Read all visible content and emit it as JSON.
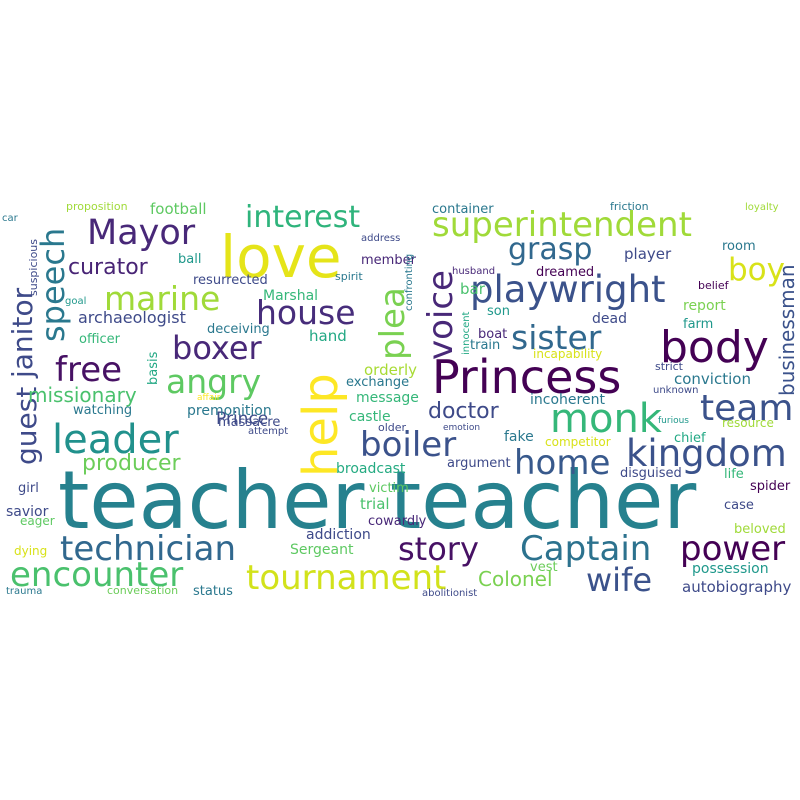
{
  "words": [
    {
      "text": "teacher teacher",
      "color": "#26818e"
    },
    {
      "text": "love",
      "color": "#e5e419"
    },
    {
      "text": "help",
      "color": "#fde725"
    },
    {
      "text": "Princess",
      "color": "#440154"
    },
    {
      "text": "body",
      "color": "#440154"
    },
    {
      "text": "playwright",
      "color": "#3b528b"
    },
    {
      "text": "superintendent",
      "color": "#a0da39"
    },
    {
      "text": "leader",
      "color": "#21918c"
    },
    {
      "text": "kingdom",
      "color": "#3b528b"
    },
    {
      "text": "technician",
      "color": "#31688e"
    },
    {
      "text": "encounter",
      "color": "#4ac16d"
    },
    {
      "text": "tournament",
      "color": "#d2e21b"
    },
    {
      "text": "Captain",
      "color": "#2c728e"
    },
    {
      "text": "power",
      "color": "#440154"
    },
    {
      "text": "story",
      "color": "#471164"
    },
    {
      "text": "wife",
      "color": "#3b528b"
    },
    {
      "text": "monk",
      "color": "#35b779"
    },
    {
      "text": "home",
      "color": "#38598c"
    },
    {
      "text": "boiler",
      "color": "#3b528b"
    },
    {
      "text": "sister",
      "color": "#31688e"
    },
    {
      "text": "team",
      "color": "#3b528b"
    },
    {
      "text": "Mayor",
      "color": "#482878"
    },
    {
      "text": "interest",
      "color": "#2fb47c"
    },
    {
      "text": "marine",
      "color": "#a0da39"
    },
    {
      "text": "house",
      "color": "#472d7b"
    },
    {
      "text": "angry",
      "color": "#5ec962"
    },
    {
      "text": "free",
      "color": "#471164"
    },
    {
      "text": "boxer",
      "color": "#482878"
    },
    {
      "text": "voice",
      "color": "#482878"
    },
    {
      "text": "plea",
      "color": "#7ad151"
    },
    {
      "text": "speech",
      "color": "#2a788e"
    },
    {
      "text": "guest",
      "color": "#3e4a89"
    },
    {
      "text": "janitor",
      "color": "#3e4a89"
    },
    {
      "text": "grasp",
      "color": "#31688e"
    },
    {
      "text": "boy",
      "color": "#d8e219"
    },
    {
      "text": "businessman",
      "color": "#3b528b"
    },
    {
      "text": "curator",
      "color": "#482475"
    },
    {
      "text": "doctor",
      "color": "#3e4a89"
    },
    {
      "text": "producer",
      "color": "#6ccd5a"
    },
    {
      "text": "missionary",
      "color": "#4ac16d"
    },
    {
      "text": "archaeologist",
      "color": "#3e4a89"
    },
    {
      "text": "Colonel",
      "color": "#7ad151"
    },
    {
      "text": "Prince",
      "color": "#3e4a89"
    },
    {
      "text": "football",
      "color": "#5ec962"
    },
    {
      "text": "container",
      "color": "#2a788e"
    },
    {
      "text": "player",
      "color": "#3e4a89"
    },
    {
      "text": "conviction",
      "color": "#2a788e"
    },
    {
      "text": "autobiography",
      "color": "#3e4a89"
    },
    {
      "text": "Marshal",
      "color": "#35b779"
    },
    {
      "text": "Sergeant",
      "color": "#5ec962"
    },
    {
      "text": "broadcast",
      "color": "#25ab82"
    },
    {
      "text": "premonition",
      "color": "#2a788e"
    },
    {
      "text": "possession",
      "color": "#1f988b"
    },
    {
      "text": "hand",
      "color": "#22a884"
    },
    {
      "text": "incoherent",
      "color": "#2a788e"
    },
    {
      "text": "orderly",
      "color": "#a8db34"
    },
    {
      "text": "message",
      "color": "#35b779"
    },
    {
      "text": "trial",
      "color": "#4ac16d"
    },
    {
      "text": "addiction",
      "color": "#3e4a89"
    },
    {
      "text": "cowardly",
      "color": "#482878"
    },
    {
      "text": "massacre",
      "color": "#3e4a89"
    },
    {
      "text": "exchange",
      "color": "#2a788e"
    },
    {
      "text": "castle",
      "color": "#35b779"
    },
    {
      "text": "victim",
      "color": "#5ec962"
    },
    {
      "text": "member",
      "color": "#482878"
    },
    {
      "text": "bar",
      "color": "#4ac16d"
    },
    {
      "text": "son",
      "color": "#1f988b"
    },
    {
      "text": "dreamed",
      "color": "#440154"
    },
    {
      "text": "dead",
      "color": "#3e4a89"
    },
    {
      "text": "train",
      "color": "#2a788e"
    },
    {
      "text": "boat",
      "color": "#482878"
    },
    {
      "text": "report",
      "color": "#7ad151"
    },
    {
      "text": "farm",
      "color": "#1f988b"
    },
    {
      "text": "room",
      "color": "#2a788e"
    },
    {
      "text": "chief",
      "color": "#22a884"
    },
    {
      "text": "fake",
      "color": "#2a788e"
    },
    {
      "text": "argument",
      "color": "#3e4a89"
    },
    {
      "text": "disguised",
      "color": "#3e4a89"
    },
    {
      "text": "case",
      "color": "#3e4a89"
    },
    {
      "text": "spider",
      "color": "#440154"
    },
    {
      "text": "life",
      "color": "#35b779"
    },
    {
      "text": "beloved",
      "color": "#a0da39"
    },
    {
      "text": "vest",
      "color": "#6ccd5a"
    },
    {
      "text": "incapability",
      "color": "#d8e219"
    },
    {
      "text": "resurrected",
      "color": "#3e4a89"
    },
    {
      "text": "ball",
      "color": "#1f988b"
    },
    {
      "text": "deceiving",
      "color": "#2a788e"
    },
    {
      "text": "officer",
      "color": "#35b779"
    },
    {
      "text": "basis",
      "color": "#22a884"
    },
    {
      "text": "watching",
      "color": "#2a788e"
    },
    {
      "text": "savior",
      "color": "#3e4a89"
    },
    {
      "text": "eager",
      "color": "#5ec962"
    },
    {
      "text": "girl",
      "color": "#3e4a89"
    },
    {
      "text": "dying",
      "color": "#d8e219"
    },
    {
      "text": "status",
      "color": "#2a788e"
    },
    {
      "text": "conversation",
      "color": "#6ccd5a"
    },
    {
      "text": "trauma",
      "color": "#2a788e"
    },
    {
      "text": "proposition",
      "color": "#a0da39"
    },
    {
      "text": "car",
      "color": "#2a788e"
    },
    {
      "text": "goal",
      "color": "#1f988b"
    },
    {
      "text": "suspicious",
      "color": "#3e4a89"
    },
    {
      "text": "address",
      "color": "#3e4a89"
    },
    {
      "text": "spirit",
      "color": "#2a788e"
    },
    {
      "text": "husband",
      "color": "#482878"
    },
    {
      "text": "confronting",
      "color": "#2a788e"
    },
    {
      "text": "innocent",
      "color": "#22a884"
    },
    {
      "text": "friction",
      "color": "#2a788e"
    },
    {
      "text": "loyalty",
      "color": "#a0da39"
    },
    {
      "text": "belief",
      "color": "#440154"
    },
    {
      "text": "strict",
      "color": "#3e4a89"
    },
    {
      "text": "unknown",
      "color": "#3e4a89"
    },
    {
      "text": "furious",
      "color": "#1f988b"
    },
    {
      "text": "resource",
      "color": "#a0da39"
    },
    {
      "text": "competitor",
      "color": "#d8e219"
    },
    {
      "text": "emotion",
      "color": "#3e4a89"
    },
    {
      "text": "older",
      "color": "#3e4a89"
    },
    {
      "text": "attempt",
      "color": "#3e4a89"
    },
    {
      "text": "affair",
      "color": "#fde725"
    },
    {
      "text": "abolitionist",
      "color": "#3e4a89"
    }
  ]
}
